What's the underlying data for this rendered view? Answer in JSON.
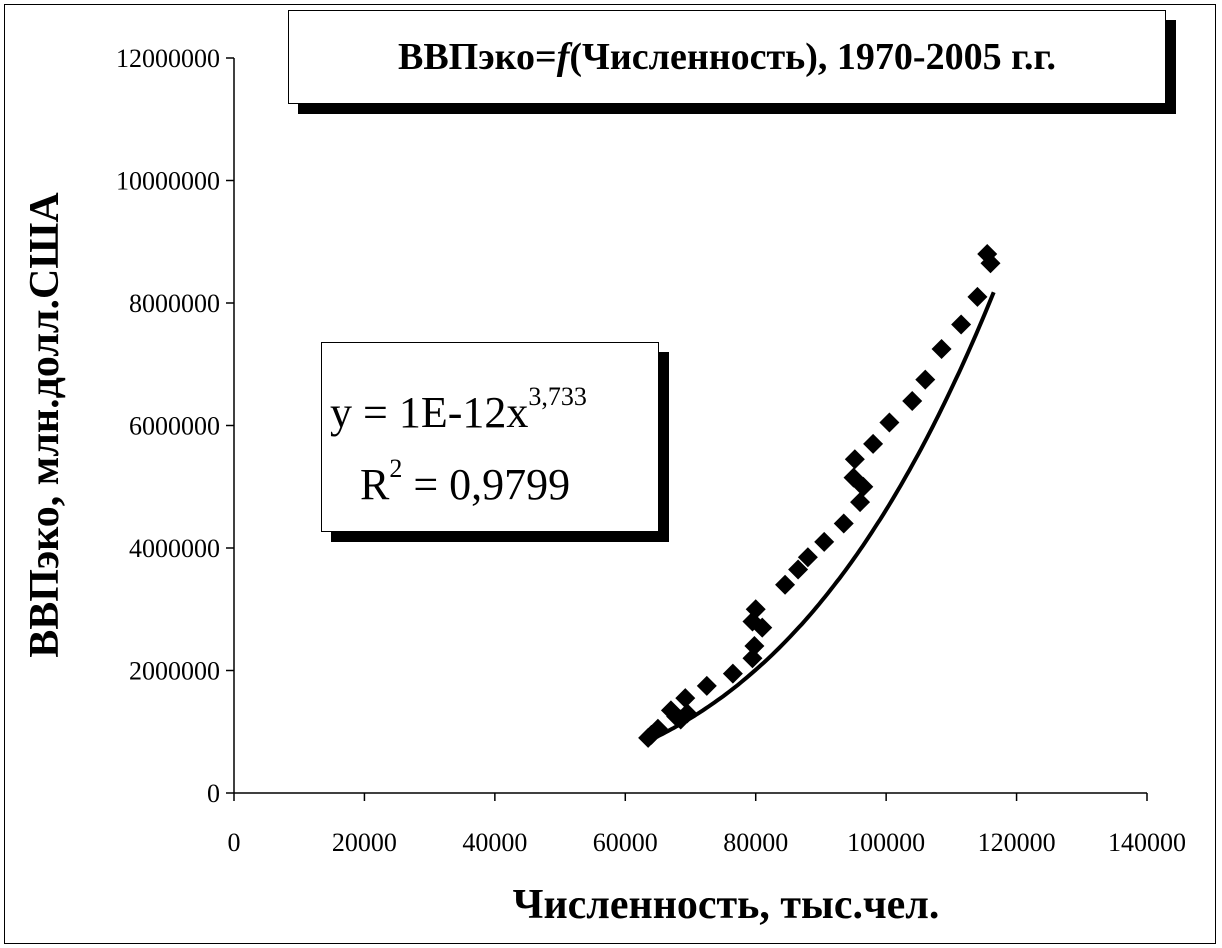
{
  "chart_data": {
    "type": "scatter",
    "title": {
      "prefix": "ВВПэко=",
      "func": "f",
      "suffix": "(Численность), 1970-2005 г.г."
    },
    "xlabel": "Численность, тыс.чел.",
    "ylabel": "ВВПэко, млн.долл.США",
    "xlim": [
      0,
      140000
    ],
    "ylim": [
      0,
      12000000
    ],
    "x_ticks": [
      "0",
      "20000",
      "40000",
      "60000",
      "80000",
      "100000",
      "120000",
      "140000"
    ],
    "y_ticks": [
      "0",
      "2000000",
      "4000000",
      "6000000",
      "8000000",
      "10000000",
      "12000000"
    ],
    "grid": false,
    "marker": "diamond",
    "marker_color": "#000000",
    "series": [
      {
        "points": [
          [
            63500,
            900000
          ],
          [
            64000,
            950000
          ],
          [
            65000,
            1050000
          ],
          [
            67000,
            1350000
          ],
          [
            67800,
            1250000
          ],
          [
            68500,
            1200000
          ],
          [
            69200,
            1550000
          ],
          [
            69500,
            1300000
          ],
          [
            72500,
            1750000
          ],
          [
            76500,
            1950000
          ],
          [
            79500,
            2200000
          ],
          [
            79800,
            2400000
          ],
          [
            79500,
            2800000
          ],
          [
            80000,
            3000000
          ],
          [
            81000,
            2700000
          ],
          [
            84500,
            3400000
          ],
          [
            86500,
            3650000
          ],
          [
            88000,
            3850000
          ],
          [
            90500,
            4100000
          ],
          [
            93500,
            4400000
          ],
          [
            95000,
            5150000
          ],
          [
            95200,
            5450000
          ],
          [
            96000,
            4750000
          ],
          [
            96500,
            5000000
          ],
          [
            98000,
            5700000
          ],
          [
            100500,
            6050000
          ],
          [
            104000,
            6400000
          ],
          [
            106000,
            6750000
          ],
          [
            108500,
            7250000
          ],
          [
            111500,
            7650000
          ],
          [
            114000,
            8100000
          ],
          [
            115500,
            8800000
          ],
          [
            116000,
            8650000
          ]
        ]
      }
    ],
    "trendline": {
      "type": "power",
      "coef": 1e-12,
      "exponent": 3.733,
      "x_range": [
        63000,
        116500
      ],
      "color": "#000000"
    },
    "equation": {
      "line1_text": "y = 1E-12x",
      "line1_exp": "3,733",
      "line2_text": "R",
      "line2_exp": "2",
      "line2_value": " = 0,9799"
    }
  }
}
